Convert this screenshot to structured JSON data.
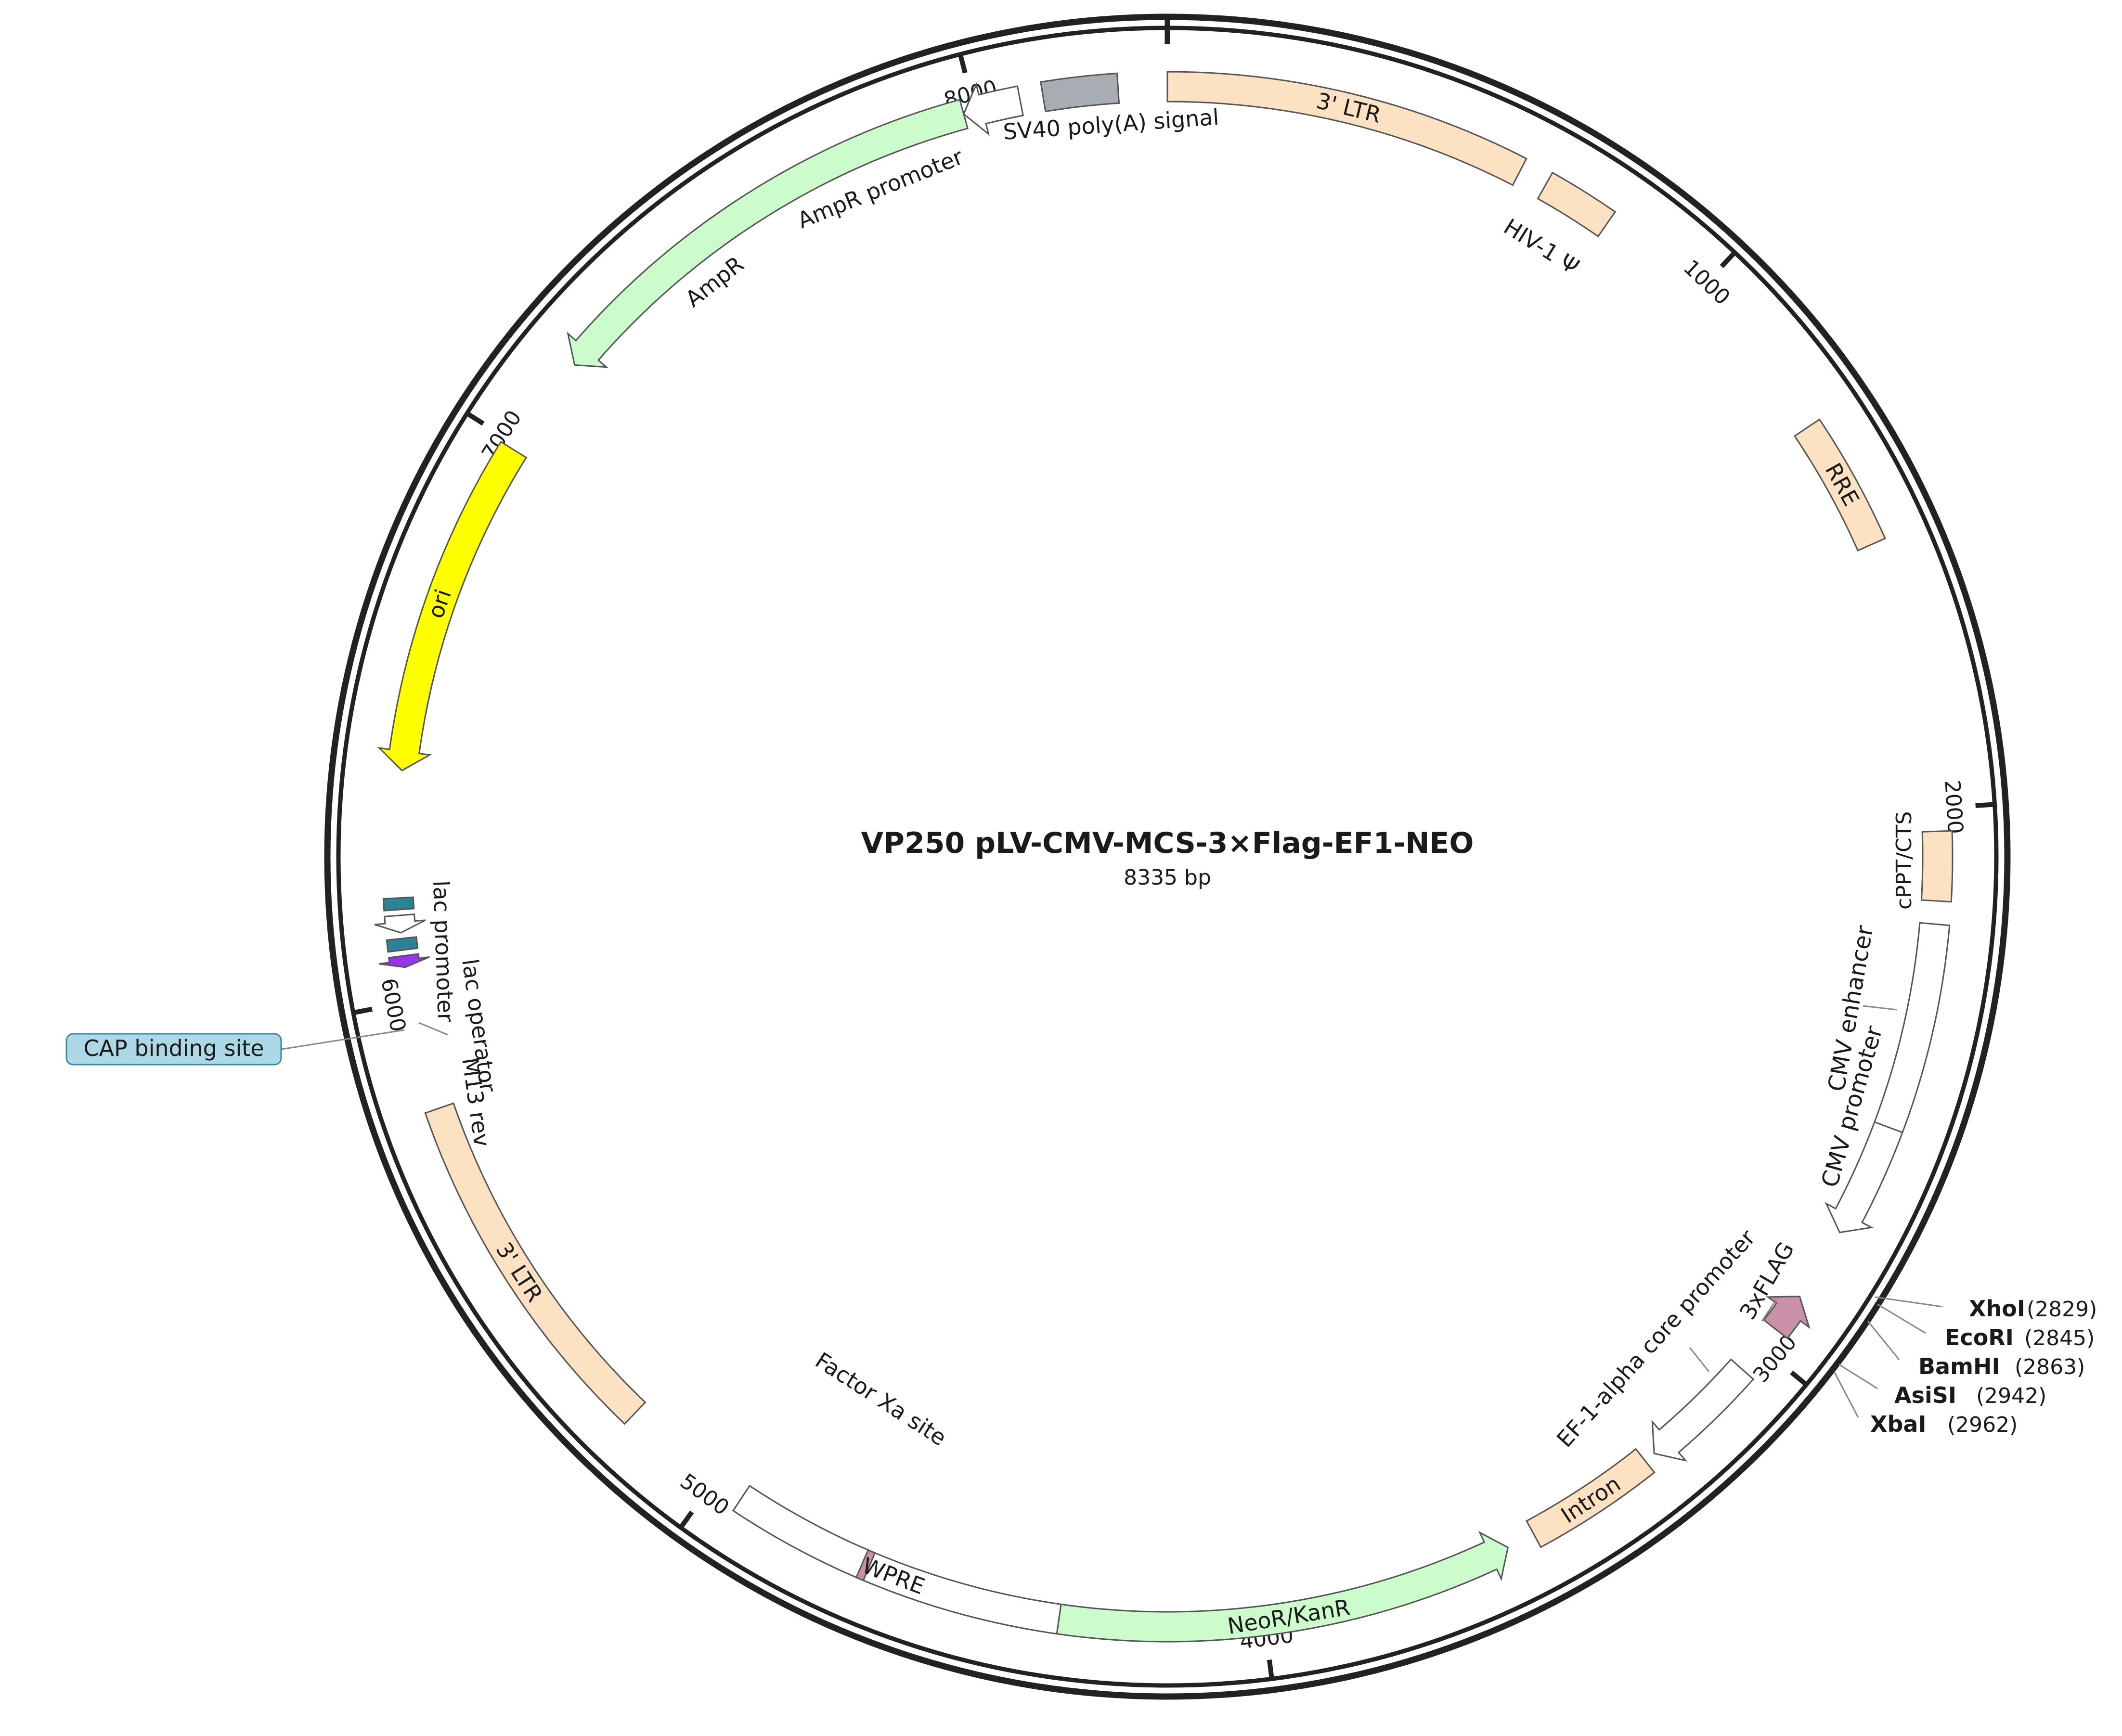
{
  "plasmid": {
    "name": "VP250  pLV-CMV-MCS-3×Flag-EF1-NEO",
    "size_label": "8335 bp",
    "length_bp": 8335
  },
  "ticks": [
    {
      "bp": 1000,
      "label": "1000"
    },
    {
      "bp": 2000,
      "label": "2000"
    },
    {
      "bp": 3000,
      "label": "3000"
    },
    {
      "bp": 4000,
      "label": "4000"
    },
    {
      "bp": 5000,
      "label": "5000"
    },
    {
      "bp": 6000,
      "label": "6000"
    },
    {
      "bp": 7000,
      "label": "7000"
    },
    {
      "bp": 8000,
      "label": "8000"
    }
  ],
  "features": [
    {
      "name": "3' LTR",
      "start": 0,
      "end": 630,
      "type": "box",
      "strand": 1,
      "color": "#fde1c3",
      "label_inside": true
    },
    {
      "name": "HIV-1 Ψ",
      "start": 680,
      "end": 805,
      "type": "box",
      "strand": 1,
      "color": "#fde1c3",
      "label_inside": false
    },
    {
      "name": "RRE",
      "start": 1300,
      "end": 1530,
      "type": "box",
      "strand": 1,
      "color": "#fde1c3",
      "label_inside": true
    },
    {
      "name": "cPPT/CTS",
      "start": 2040,
      "end": 2160,
      "type": "box",
      "strand": 1,
      "color": "#fde1c3",
      "label_inside": false
    },
    {
      "name": "CMV enhancer",
      "start": 2200,
      "end": 2560,
      "type": "box",
      "strand": 1,
      "color": "#ffffff",
      "label_inside": false
    },
    {
      "name": "CMV promoter",
      "start": 2560,
      "end": 2760,
      "type": "arrow",
      "strand": 1,
      "color": "#ffffff",
      "label_inside": false
    },
    {
      "name": "3xFLAG",
      "start": 2890,
      "end": 2960,
      "type": "arrow",
      "strand": -1,
      "color": "#c990a8",
      "label_inside": false
    },
    {
      "name": "EF-1-alpha core promoter",
      "start": 3050,
      "end": 3260,
      "type": "arrow",
      "strand": 1,
      "color": "#ffffff",
      "label_inside": false
    },
    {
      "name": "Intron",
      "start": 3280,
      "end": 3510,
      "type": "box",
      "strand": 1,
      "color": "#fde1c3",
      "label_inside": true
    },
    {
      "name": "NeoR/KanR",
      "start": 3560,
      "end": 4355,
      "type": "arrow",
      "strand": -1,
      "color": "#ccfccc",
      "label_inside": true
    },
    {
      "name": "WPRE",
      "start": 4355,
      "end": 4945,
      "type": "box",
      "strand": 1,
      "color": "#ffffff",
      "label_inside": true
    },
    {
      "name": "Factor Xa site",
      "start": 4695,
      "end": 4708,
      "type": "box",
      "strand": 1,
      "color": "#c990a8",
      "label_inside": false
    },
    {
      "name": "3' LTR",
      "start": 5180,
      "end": 5810,
      "type": "box",
      "strand": 1,
      "color": "#fde1c3",
      "label_inside": true
    },
    {
      "name": "M13 rev",
      "start": 6060,
      "end": 6080,
      "type": "arrow",
      "strand": -1,
      "color": "#9933ee",
      "label_inside": false
    },
    {
      "name": "lac operator",
      "start": 6090,
      "end": 6110,
      "type": "box",
      "strand": 1,
      "color": "#2a8496",
      "label_inside": false
    },
    {
      "name": "lac promoter",
      "start": 6120,
      "end": 6150,
      "type": "arrow",
      "strand": -1,
      "color": "#ffffff",
      "label_inside": false
    },
    {
      "name": "CAP binding site",
      "start": 6160,
      "end": 6180,
      "type": "box",
      "strand": 1,
      "color": "#2a8496",
      "label_inside": false
    },
    {
      "name": "ori",
      "start": 6400,
      "end": 6990,
      "type": "arrow",
      "strand": -1,
      "color": "#ffff00",
      "label_inside": true
    },
    {
      "name": "AmpR",
      "start": 7170,
      "end": 7980,
      "type": "arrow",
      "strand": -1,
      "color": "#ccfccc",
      "label_inside": false
    },
    {
      "name": "AmpR promoter",
      "start": 7980,
      "end": 8080,
      "type": "arrow",
      "strand": -1,
      "color": "#ffffff",
      "label_inside": false
    },
    {
      "name": "SV40 poly(A) signal",
      "start": 8120,
      "end": 8250,
      "type": "box",
      "strand": 1,
      "color": "#a7adb3",
      "label_inside": false
    }
  ],
  "outside_labels": {
    "hiv1_psi": "HIV-1 Ψ",
    "cppt": "cPPT/CTS",
    "cmv_enhancer": "CMV enhancer",
    "cmv_promoter": "CMV promoter",
    "flag": "3xFLAG",
    "ef1": "EF-1-alpha core promoter",
    "factor_xa": "Factor Xa site",
    "m13": "M13 rev",
    "lac_operator": "lac operator",
    "lac_promoter": "lac promoter",
    "cap": "CAP binding site",
    "ampr": "AmpR",
    "ampr_promoter": "AmpR promoter",
    "sv40": "SV40 poly(A) signal"
  },
  "restriction_sites": [
    {
      "name": "XhoI",
      "position": "(2829)"
    },
    {
      "name": "EcoRI",
      "position": "(2845)"
    },
    {
      "name": "BamHI",
      "position": "(2863)"
    },
    {
      "name": "AsiSI",
      "position": "(2942)"
    },
    {
      "name": "XbaI",
      "position": "(2962)"
    }
  ]
}
